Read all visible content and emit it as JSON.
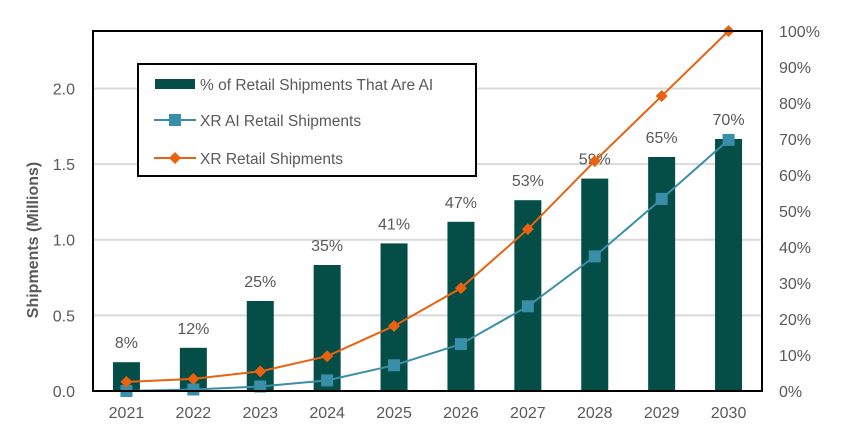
{
  "chart_data": {
    "type": "bar+line",
    "title": "",
    "xlabel": "",
    "ylabel": "Shipments (Millions)",
    "y2label": "",
    "ylim": [
      0,
      2.38
    ],
    "y2lim": [
      0,
      1.0
    ],
    "yticks": [
      "0.0",
      "0.5",
      "1.0",
      "1.5",
      "2.0"
    ],
    "y2ticks": [
      "0%",
      "10%",
      "20%",
      "30%",
      "40%",
      "50%",
      "60%",
      "70%",
      "80%",
      "90%",
      "100%"
    ],
    "grid": true,
    "legend_position": "top-left inside",
    "categories": [
      "2021",
      "2022",
      "2023",
      "2024",
      "2025",
      "2026",
      "2027",
      "2028",
      "2029",
      "2030"
    ],
    "series": [
      {
        "name": "% of Retail Shipments That Are AI",
        "type": "bar",
        "axis": "right",
        "color": "#054D47",
        "values": [
          0.08,
          0.12,
          0.25,
          0.35,
          0.41,
          0.47,
          0.53,
          0.59,
          0.65,
          0.7
        ],
        "labels": [
          "8%",
          "12%",
          "25%",
          "35%",
          "41%",
          "47%",
          "53%",
          "59%",
          "65%",
          "70%"
        ]
      },
      {
        "name": "XR AI Retail Shipments",
        "type": "line",
        "marker": "square",
        "axis": "left",
        "color": "#3A8FA8",
        "values": [
          0.0,
          0.01,
          0.03,
          0.07,
          0.17,
          0.31,
          0.56,
          0.89,
          1.27,
          1.66
        ]
      },
      {
        "name": "XR Retail Shipments",
        "type": "line",
        "marker": "diamond",
        "axis": "left",
        "color": "#E8620F",
        "values": [
          0.06,
          0.08,
          0.13,
          0.23,
          0.43,
          0.68,
          1.07,
          1.52,
          1.95,
          2.38
        ]
      }
    ]
  }
}
